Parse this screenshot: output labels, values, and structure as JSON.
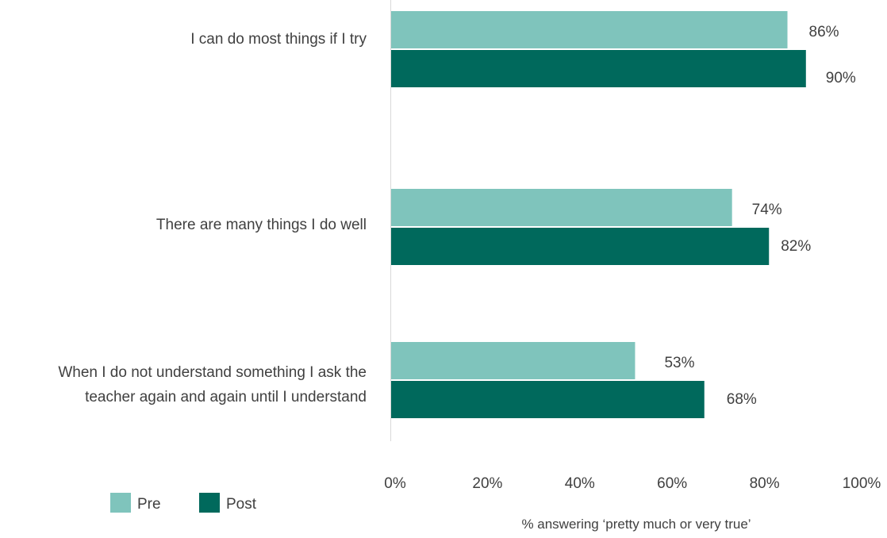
{
  "chart_data": {
    "type": "bar",
    "orientation": "horizontal",
    "categories": [
      [
        "I can do most things if I try"
      ],
      [
        "There are many things I do well"
      ],
      [
        "When I do not understand something I ask the",
        "teacher again and again until I understand"
      ]
    ],
    "series": [
      {
        "name": "Pre",
        "color": "#7fc4bc",
        "values": [
          86,
          74,
          53
        ],
        "labels": [
          "86%",
          "74%",
          "53%"
        ]
      },
      {
        "name": "Post",
        "color": "#00695c",
        "values": [
          90,
          82,
          68
        ],
        "labels": [
          "90%",
          "82%",
          "68%"
        ]
      }
    ],
    "xlim": [
      0,
      100
    ],
    "xticks": [
      "0%",
      "20%",
      "40%",
      "60%",
      "80%",
      "100%"
    ],
    "xlabel": "% answering ‘pretty much or very true’",
    "legend_position": "bottom-left",
    "grid": false
  }
}
